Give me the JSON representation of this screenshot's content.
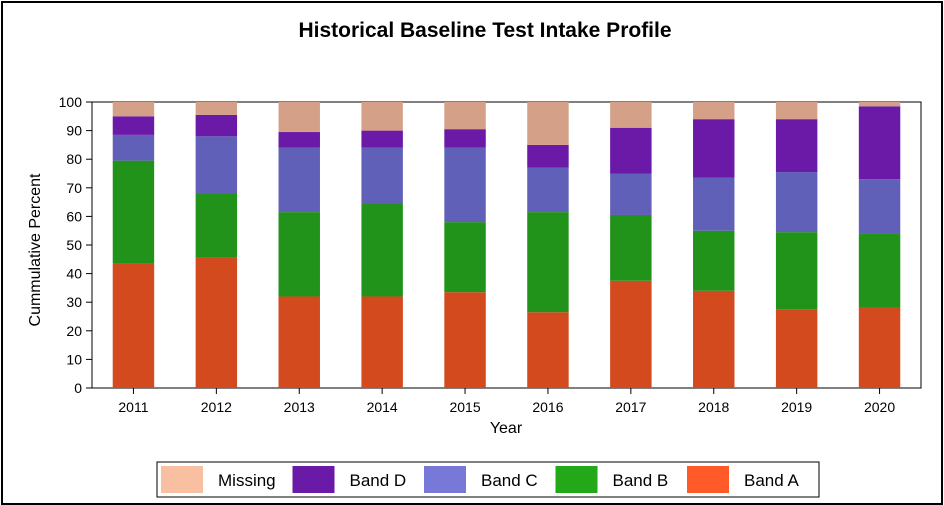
{
  "chart_data": {
    "type": "bar",
    "stacked": true,
    "title": "Historical Baseline Test Intake Profile",
    "xlabel": "Year",
    "ylabel": "Cummulative Percent",
    "ylim": [
      0,
      100
    ],
    "yticks": [
      0,
      10,
      20,
      30,
      40,
      50,
      60,
      70,
      80,
      90,
      100
    ],
    "grid": false,
    "legend_position": "bottom",
    "categories": [
      "2011",
      "2012",
      "2013",
      "2014",
      "2015",
      "2016",
      "2017",
      "2018",
      "2019",
      "2020"
    ],
    "series": [
      {
        "name": "Band A",
        "color": "#d24a1e",
        "values": [
          43.5,
          45.5,
          32,
          32,
          33.5,
          26.5,
          37.5,
          34,
          27.5,
          28
        ]
      },
      {
        "name": "Band B",
        "color": "#22931a",
        "values": [
          36,
          22.5,
          29.5,
          32.5,
          24.5,
          35,
          23,
          21,
          27,
          26
        ]
      },
      {
        "name": "Band C",
        "color": "#6060b8",
        "values": [
          9,
          20,
          22.5,
          19.5,
          26,
          15.5,
          14.5,
          18.5,
          21,
          19
        ]
      },
      {
        "name": "Band D",
        "color": "#6a1aa6",
        "values": [
          6.5,
          7.5,
          5.5,
          6,
          6.5,
          8,
          16,
          20.5,
          18.5,
          25.5
        ]
      },
      {
        "name": "Missing",
        "color": "#d4a088",
        "values": [
          5,
          4.5,
          10.5,
          10,
          9.5,
          15,
          9,
          6,
          6,
          1.5
        ]
      }
    ],
    "legend": [
      {
        "name": "Missing",
        "color": "#f8c0a0"
      },
      {
        "name": "Band D",
        "color": "#6a1aa6"
      },
      {
        "name": "Band C",
        "color": "#7878d8"
      },
      {
        "name": "Band B",
        "color": "#22a818"
      },
      {
        "name": "Band A",
        "color": "#ff5a28"
      }
    ]
  }
}
